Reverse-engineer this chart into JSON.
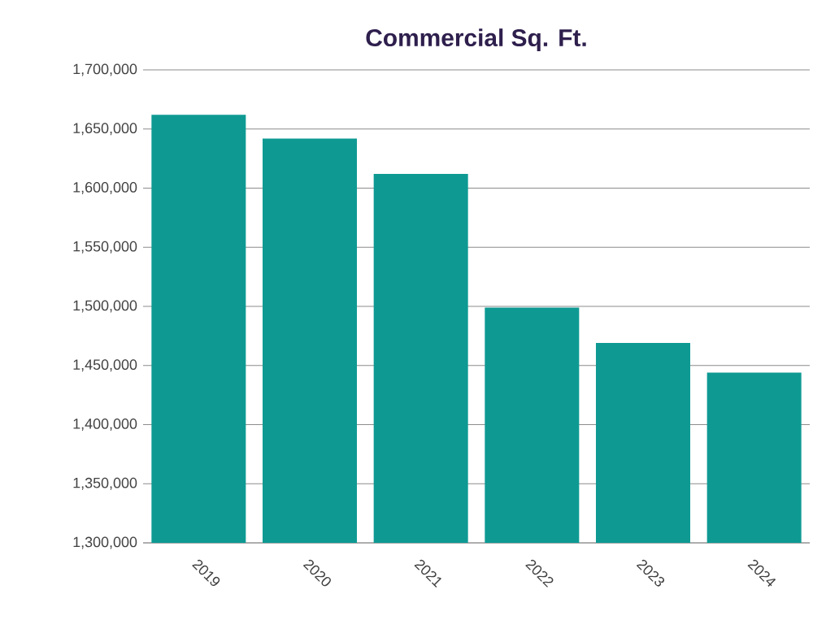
{
  "chart_data": {
    "type": "bar",
    "title": "Commercial Sq. Ft.",
    "categories": [
      "2019",
      "2020",
      "2021",
      "2022",
      "2023",
      "2024"
    ],
    "values": [
      1662000,
      1642000,
      1612000,
      1499000,
      1469000,
      1444000
    ],
    "color": "#0e9a93",
    "ylim": [
      1300000,
      1700000
    ],
    "yticks": [
      {
        "value": 1300000,
        "label": "1,300,000"
      },
      {
        "value": 1350000,
        "label": "1,350,000"
      },
      {
        "value": 1400000,
        "label": "1,400,000"
      },
      {
        "value": 1450000,
        "label": "1,450,000"
      },
      {
        "value": 1500000,
        "label": "1,500,000"
      },
      {
        "value": 1550000,
        "label": "1,550,000"
      },
      {
        "value": 1600000,
        "label": "1,600,000"
      },
      {
        "value": 1650000,
        "label": "1,650,000"
      },
      {
        "value": 1700000,
        "label": "1,700,000"
      }
    ],
    "grid": "y"
  }
}
